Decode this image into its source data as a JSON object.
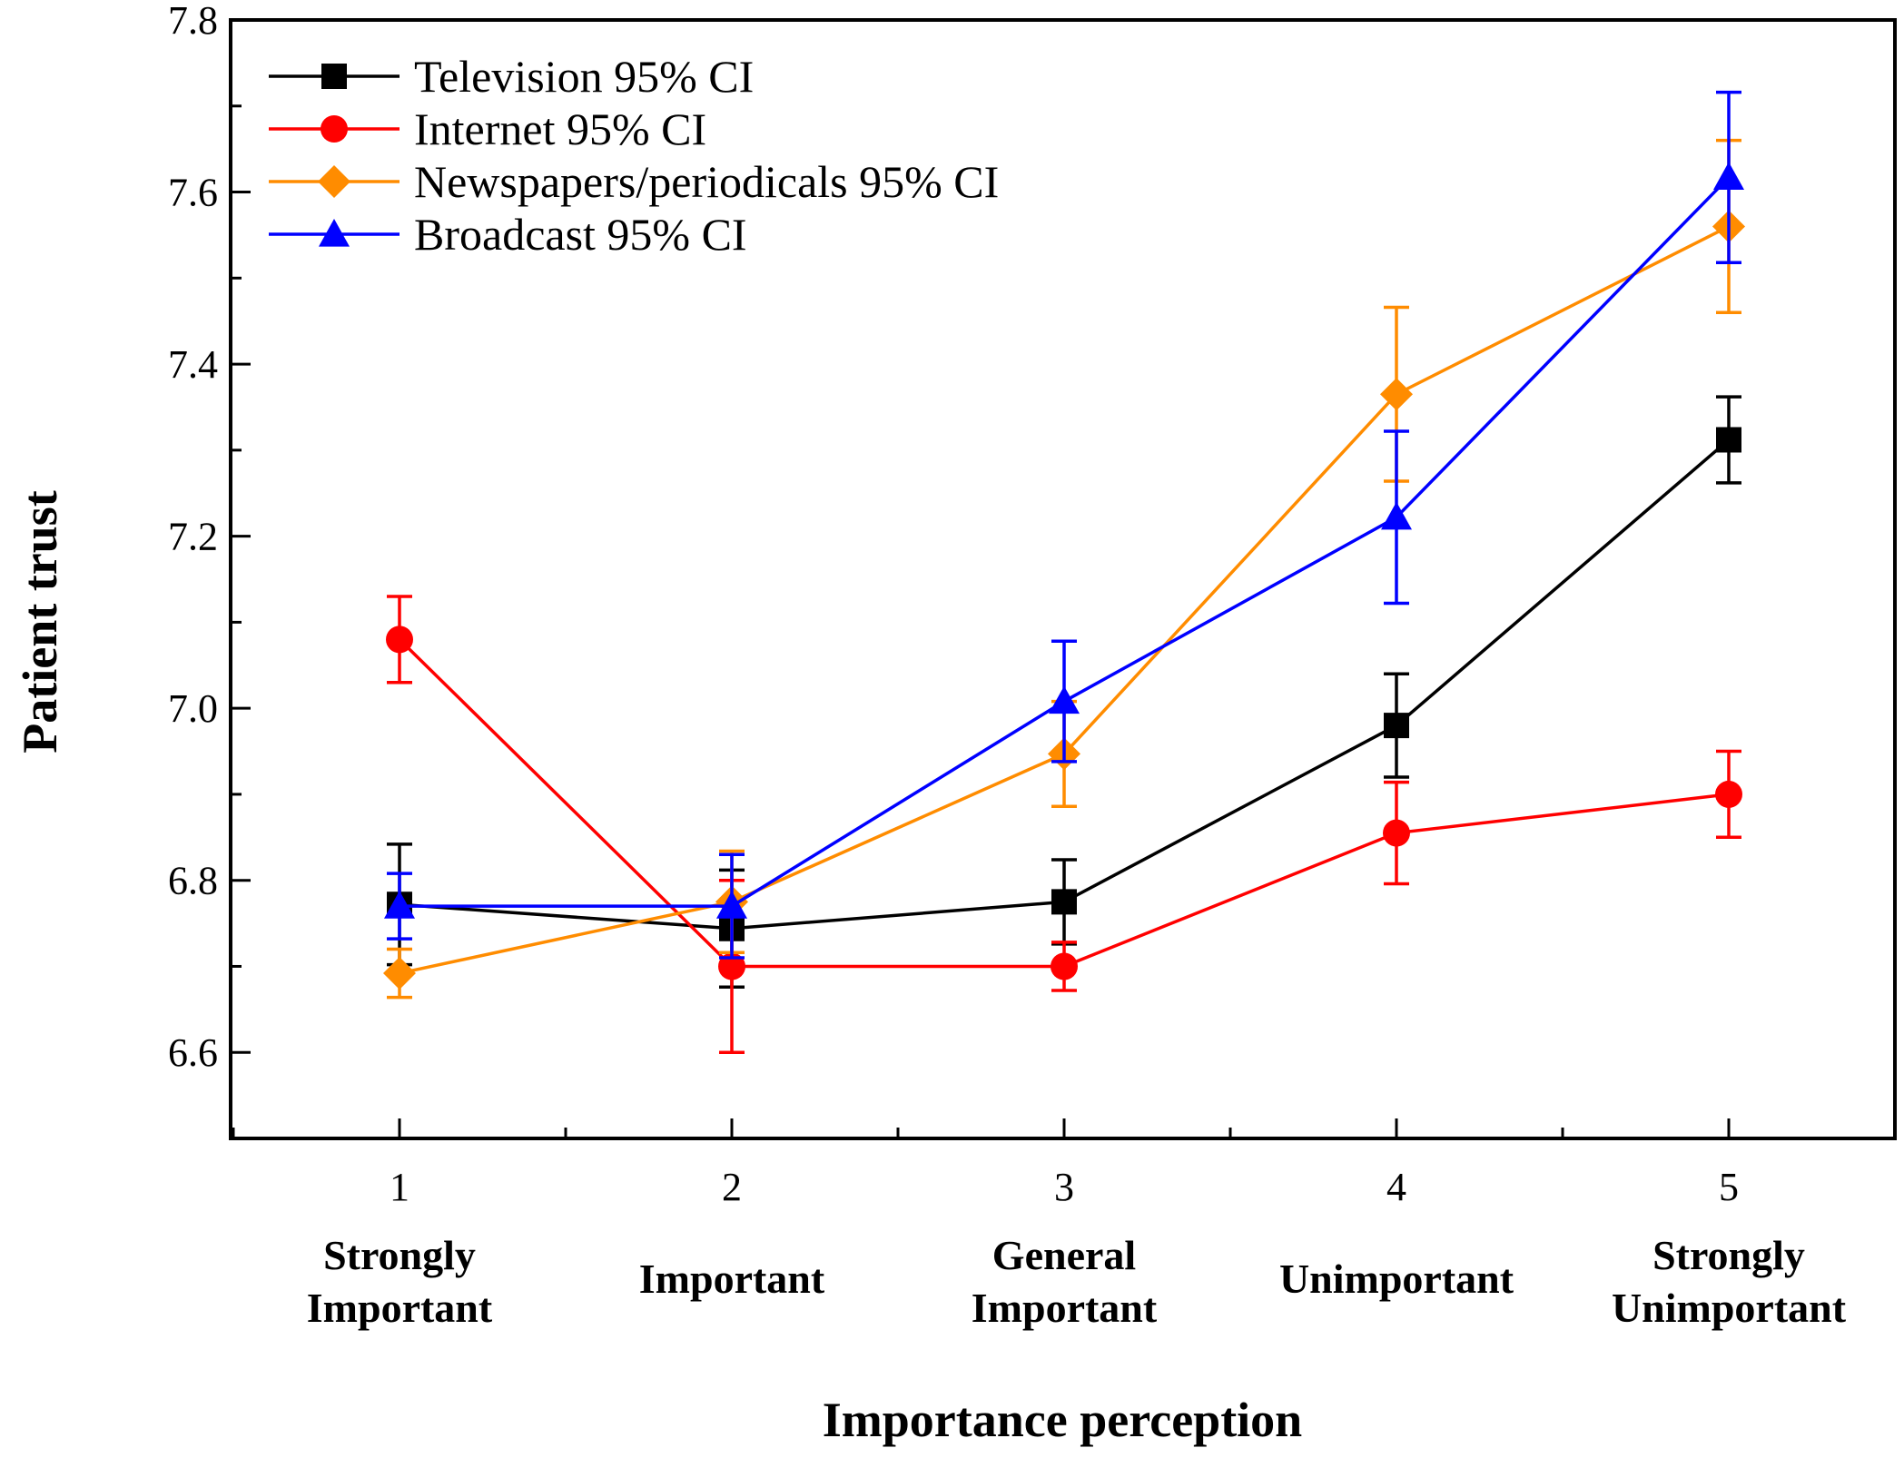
{
  "chart_data": {
    "type": "line",
    "xlabel": "Importance perception",
    "ylabel": "Patient trust",
    "ylim": [
      6.5,
      7.8
    ],
    "xlim": [
      0.5,
      5.5
    ],
    "yticks": [
      "6.6",
      "6.8",
      "7.0",
      "7.2",
      "7.4",
      "7.6",
      "7.8"
    ],
    "x": [
      "1",
      "2",
      "3",
      "4",
      "5"
    ],
    "categories": [
      [
        "Strongly",
        "Important"
      ],
      [
        "Important"
      ],
      [
        "General",
        "Important"
      ],
      [
        "Unimportant"
      ],
      [
        "Strongly",
        "Unimportant"
      ]
    ],
    "legend_position": "top-left",
    "series": [
      {
        "name": "Television  95% CI",
        "color": "#000000",
        "marker": "square",
        "values": [
          6.772,
          6.744,
          6.775,
          6.98,
          7.312
        ],
        "ci_low": [
          6.702,
          6.676,
          6.726,
          6.92,
          7.262
        ],
        "ci_high": [
          6.842,
          6.812,
          6.824,
          7.04,
          7.362
        ]
      },
      {
        "name": "Internet  95% CI",
        "color": "#ff0000",
        "marker": "circle",
        "values": [
          7.08,
          6.7,
          6.7,
          6.855,
          6.9
        ],
        "ci_low": [
          7.03,
          6.6,
          6.672,
          6.796,
          6.85
        ],
        "ci_high": [
          7.13,
          6.8,
          6.728,
          6.914,
          6.95
        ]
      },
      {
        "name": "Newspapers/periodicals  95% CI",
        "color": "#ff8c00",
        "marker": "diamond",
        "values": [
          6.692,
          6.775,
          6.947,
          7.365,
          7.56
        ],
        "ci_low": [
          6.664,
          6.716,
          6.886,
          7.264,
          7.46
        ],
        "ci_high": [
          6.72,
          6.834,
          7.008,
          7.466,
          7.66
        ]
      },
      {
        "name": "Broadcast  95% CI",
        "color": "#0000ff",
        "marker": "triangle",
        "values": [
          6.77,
          6.77,
          7.008,
          7.222,
          7.617
        ],
        "ci_low": [
          6.732,
          6.71,
          6.938,
          7.122,
          7.518
        ],
        "ci_high": [
          6.808,
          6.83,
          7.078,
          7.322,
          7.716
        ]
      }
    ]
  }
}
